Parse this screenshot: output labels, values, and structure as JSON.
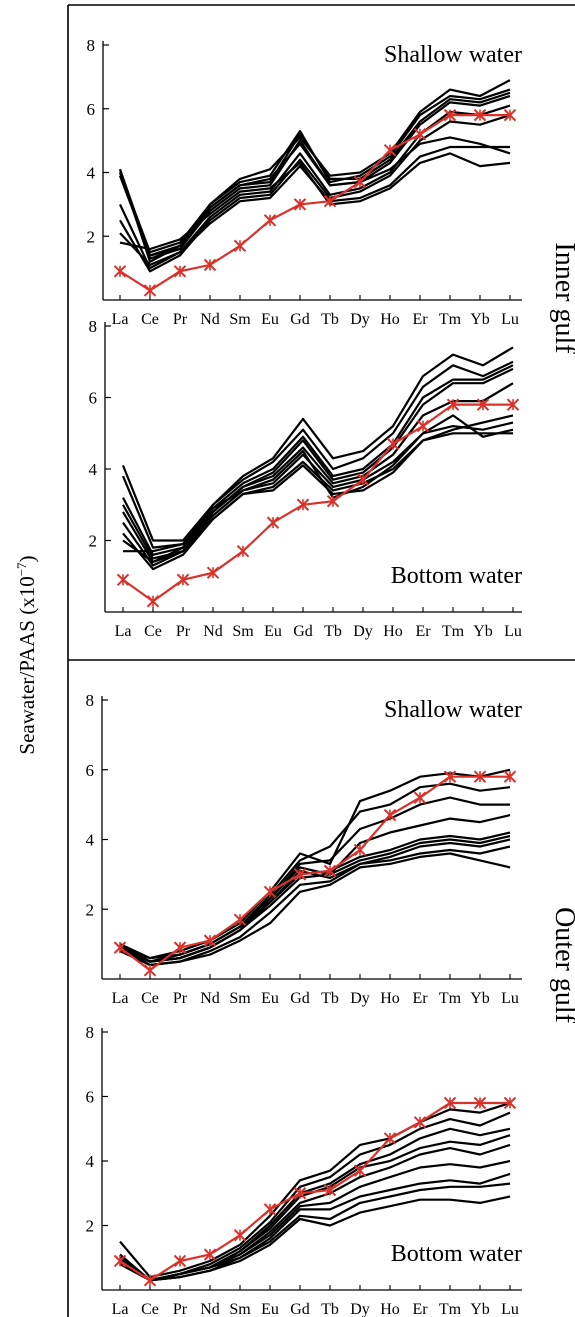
{
  "figure": {
    "ylabel": "Seawater/PAAS (x10",
    "ylabel_exp": "−7",
    "ylabel_close": ")",
    "group_labels": [
      "Inner gulf",
      "Outer gulf"
    ]
  },
  "chart_data": [
    {
      "type": "line",
      "annotation": "Shallow water",
      "annotation_position": "top-right",
      "categories": [
        "La",
        "Ce",
        "Pr",
        "Nd",
        "Sm",
        "Eu",
        "Gd",
        "Tb",
        "Dy",
        "Ho",
        "Er",
        "Tm",
        "Yb",
        "Lu"
      ],
      "yticks": [
        2,
        4,
        6,
        8
      ],
      "ylim": [
        0,
        8
      ],
      "series": [
        {
          "values": [
            4.0,
            1.3,
            1.6,
            2.9,
            3.6,
            3.7,
            5.2,
            3.8,
            3.8,
            4.4,
            5.6,
            6.3,
            6.2,
            6.5
          ]
        },
        {
          "values": [
            4.1,
            1.2,
            1.7,
            3.0,
            3.7,
            3.9,
            5.3,
            3.7,
            3.9,
            4.5,
            5.8,
            6.4,
            6.3,
            6.6
          ]
        },
        {
          "values": [
            3.9,
            1.4,
            1.6,
            2.8,
            3.5,
            3.6,
            5.0,
            3.6,
            3.7,
            4.3,
            5.5,
            6.2,
            6.1,
            6.4
          ]
        },
        {
          "values": [
            4.0,
            1.5,
            1.8,
            3.0,
            3.8,
            4.1,
            5.1,
            3.9,
            4.0,
            4.6,
            5.9,
            6.6,
            6.4,
            6.9
          ]
        },
        {
          "values": [
            3.0,
            1.0,
            1.5,
            2.6,
            3.3,
            3.4,
            4.6,
            3.3,
            3.5,
            4.0,
            5.2,
            5.9,
            5.8,
            6.1
          ]
        },
        {
          "values": [
            2.5,
            0.9,
            1.4,
            2.5,
            3.2,
            3.3,
            4.4,
            3.2,
            3.4,
            3.9,
            5.0,
            5.6,
            5.5,
            5.8
          ]
        },
        {
          "values": [
            2.1,
            1.1,
            1.5,
            2.4,
            3.1,
            3.2,
            4.2,
            3.1,
            3.2,
            3.6,
            4.5,
            4.8,
            4.8,
            4.8
          ]
        },
        {
          "values": [
            1.8,
            1.6,
            1.9,
            2.7,
            3.4,
            3.5,
            4.3,
            3.0,
            3.1,
            3.5,
            4.3,
            4.6,
            4.2,
            4.3
          ]
        },
        {
          "values": [
            4.1,
            1.4,
            1.7,
            2.9,
            3.6,
            3.8,
            4.9,
            3.6,
            3.7,
            4.1,
            4.9,
            5.1,
            4.9,
            4.6
          ]
        }
      ],
      "reference": {
        "values": [
          0.9,
          0.3,
          0.9,
          1.1,
          1.7,
          2.5,
          3.0,
          3.1,
          3.7,
          4.7,
          5.2,
          5.8,
          5.8,
          5.8
        ]
      }
    },
    {
      "type": "line",
      "annotation": "Bottom water",
      "annotation_position": "bottom-right",
      "categories": [
        "La",
        "Ce",
        "Pr",
        "Nd",
        "Sm",
        "Eu",
        "Gd",
        "Tb",
        "Dy",
        "Ho",
        "Er",
        "Tm",
        "Yb",
        "Lu"
      ],
      "yticks": [
        2,
        4,
        6,
        8
      ],
      "ylim": [
        0,
        8
      ],
      "series": [
        {
          "values": [
            4.1,
            2.0,
            2.0,
            3.0,
            3.8,
            4.3,
            5.4,
            4.3,
            4.5,
            5.2,
            6.6,
            7.2,
            6.9,
            7.4
          ]
        },
        {
          "values": [
            3.8,
            1.8,
            1.9,
            3.0,
            3.7,
            4.2,
            5.1,
            4.0,
            4.3,
            5.0,
            6.3,
            6.9,
            6.6,
            7.0
          ]
        },
        {
          "values": [
            3.2,
            1.6,
            1.8,
            2.9,
            3.6,
            4.0,
            4.9,
            3.8,
            4.0,
            4.7,
            6.0,
            6.5,
            6.5,
            6.9
          ]
        },
        {
          "values": [
            3.0,
            1.5,
            1.7,
            2.8,
            3.5,
            3.9,
            4.8,
            3.7,
            3.9,
            4.6,
            5.8,
            6.4,
            6.4,
            6.8
          ]
        },
        {
          "values": [
            2.8,
            1.4,
            1.8,
            2.8,
            3.5,
            3.8,
            4.6,
            3.6,
            3.8,
            4.4,
            5.5,
            5.9,
            5.9,
            6.4
          ]
        },
        {
          "values": [
            2.5,
            1.3,
            1.7,
            2.7,
            3.4,
            3.6,
            4.4,
            3.5,
            3.7,
            4.2,
            5.0,
            5.2,
            5.1,
            5.3
          ]
        },
        {
          "values": [
            2.2,
            1.2,
            1.6,
            2.6,
            3.3,
            3.5,
            4.2,
            3.4,
            3.6,
            4.0,
            4.8,
            5.0,
            5.0,
            5.0
          ]
        },
        {
          "values": [
            2.0,
            1.4,
            1.7,
            2.6,
            3.3,
            3.4,
            4.1,
            3.3,
            3.4,
            3.9,
            4.8,
            5.1,
            5.3,
            5.5
          ]
        },
        {
          "values": [
            1.7,
            1.7,
            1.9,
            2.9,
            3.4,
            3.7,
            4.5,
            3.2,
            3.5,
            4.1,
            5.0,
            5.5,
            4.9,
            5.1
          ]
        }
      ],
      "reference": {
        "values": [
          0.9,
          0.3,
          0.9,
          1.1,
          1.7,
          2.5,
          3.0,
          3.1,
          3.7,
          4.7,
          5.2,
          5.8,
          5.8,
          5.8
        ]
      }
    },
    {
      "type": "line",
      "annotation": "Shallow water",
      "annotation_position": "top-right",
      "categories": [
        "La",
        "Ce",
        "Pr",
        "Nd",
        "Sm",
        "Eu",
        "Gd",
        "Tb",
        "Dy",
        "Ho",
        "Er",
        "Tm",
        "Yb",
        "Lu"
      ],
      "yticks": [
        2,
        4,
        6,
        8
      ],
      "ylim": [
        0,
        8
      ],
      "series": [
        {
          "values": [
            0.9,
            0.6,
            0.8,
            1.1,
            1.6,
            2.5,
            3.6,
            3.3,
            5.1,
            5.4,
            5.8,
            5.9,
            5.8,
            6.0
          ]
        },
        {
          "values": [
            1.0,
            0.5,
            0.7,
            1.0,
            1.5,
            2.4,
            3.4,
            3.8,
            4.8,
            5.0,
            5.5,
            5.6,
            5.4,
            5.5
          ]
        },
        {
          "values": [
            0.9,
            0.5,
            0.6,
            0.9,
            1.4,
            2.3,
            3.3,
            3.4,
            4.3,
            4.6,
            5.0,
            5.2,
            5.0,
            5.0
          ]
        },
        {
          "values": [
            1.0,
            0.6,
            0.7,
            1.0,
            1.5,
            2.3,
            3.2,
            3.0,
            3.9,
            4.2,
            4.4,
            4.6,
            4.5,
            4.7
          ]
        },
        {
          "values": [
            0.9,
            0.5,
            0.6,
            0.9,
            1.4,
            2.2,
            3.0,
            3.1,
            3.5,
            3.7,
            4.0,
            4.1,
            4.0,
            4.2
          ]
        },
        {
          "values": [
            0.9,
            0.5,
            0.6,
            0.9,
            1.4,
            2.1,
            2.9,
            3.0,
            3.4,
            3.6,
            3.9,
            4.0,
            3.9,
            4.1
          ]
        },
        {
          "values": [
            1.0,
            0.5,
            0.7,
            1.0,
            1.5,
            2.2,
            3.1,
            2.9,
            3.3,
            3.5,
            3.8,
            3.9,
            3.8,
            4.0
          ]
        },
        {
          "values": [
            0.9,
            0.4,
            0.5,
            0.8,
            1.2,
            1.9,
            2.7,
            2.8,
            3.3,
            3.4,
            3.6,
            3.7,
            3.6,
            3.8
          ]
        },
        {
          "values": [
            0.8,
            0.4,
            0.5,
            0.7,
            1.1,
            1.6,
            2.5,
            2.7,
            3.2,
            3.3,
            3.5,
            3.6,
            3.4,
            3.2
          ]
        }
      ],
      "reference": {
        "values": [
          0.9,
          0.25,
          0.9,
          1.1,
          1.7,
          2.5,
          3.0,
          3.1,
          3.7,
          4.7,
          5.2,
          5.8,
          5.8,
          5.8
        ]
      }
    },
    {
      "type": "line",
      "annotation": "Bottom water",
      "annotation_position": "bottom-right",
      "categories": [
        "La",
        "Ce",
        "Pr",
        "Nd",
        "Sm",
        "Eu",
        "Gd",
        "Tb",
        "Dy",
        "Ho",
        "Er",
        "Tm",
        "Yb",
        "Lu"
      ],
      "yticks": [
        2,
        4,
        6,
        8
      ],
      "ylim": [
        0,
        8
      ],
      "series": [
        {
          "values": [
            1.5,
            0.4,
            0.6,
            0.9,
            1.4,
            2.3,
            3.4,
            3.7,
            4.5,
            4.7,
            5.2,
            5.6,
            5.5,
            5.8
          ]
        },
        {
          "values": [
            1.1,
            0.3,
            0.5,
            0.8,
            1.3,
            2.1,
            3.2,
            3.5,
            4.2,
            4.5,
            5.0,
            5.3,
            5.1,
            5.5
          ]
        },
        {
          "values": [
            1.0,
            0.3,
            0.5,
            0.7,
            1.2,
            2.0,
            3.0,
            3.3,
            3.9,
            4.2,
            4.7,
            5.0,
            4.8,
            5.0
          ]
        },
        {
          "values": [
            0.9,
            0.3,
            0.5,
            0.7,
            1.2,
            1.9,
            2.9,
            3.2,
            3.8,
            4.0,
            4.4,
            4.6,
            4.5,
            4.8
          ]
        },
        {
          "values": [
            1.0,
            0.3,
            0.5,
            0.7,
            1.1,
            1.8,
            2.7,
            3.0,
            3.5,
            3.8,
            4.2,
            4.4,
            4.2,
            4.5
          ]
        },
        {
          "values": [
            0.9,
            0.3,
            0.5,
            0.7,
            1.1,
            1.7,
            2.6,
            2.7,
            3.2,
            3.5,
            3.8,
            3.9,
            3.8,
            4.0
          ]
        },
        {
          "values": [
            1.0,
            0.3,
            0.5,
            0.7,
            1.0,
            1.6,
            2.5,
            2.5,
            2.9,
            3.1,
            3.3,
            3.4,
            3.3,
            3.6
          ]
        },
        {
          "values": [
            0.9,
            0.3,
            0.4,
            0.6,
            1.0,
            1.5,
            2.3,
            2.2,
            2.7,
            2.9,
            3.1,
            3.2,
            3.2,
            3.3
          ]
        },
        {
          "values": [
            0.8,
            0.3,
            0.4,
            0.6,
            0.9,
            1.4,
            2.2,
            2.0,
            2.4,
            2.6,
            2.8,
            2.8,
            2.7,
            2.9
          ]
        }
      ],
      "reference": {
        "values": [
          0.9,
          0.3,
          0.9,
          1.1,
          1.7,
          2.5,
          3.0,
          3.1,
          3.7,
          4.7,
          5.2,
          5.8,
          5.8,
          5.8
        ]
      }
    }
  ]
}
